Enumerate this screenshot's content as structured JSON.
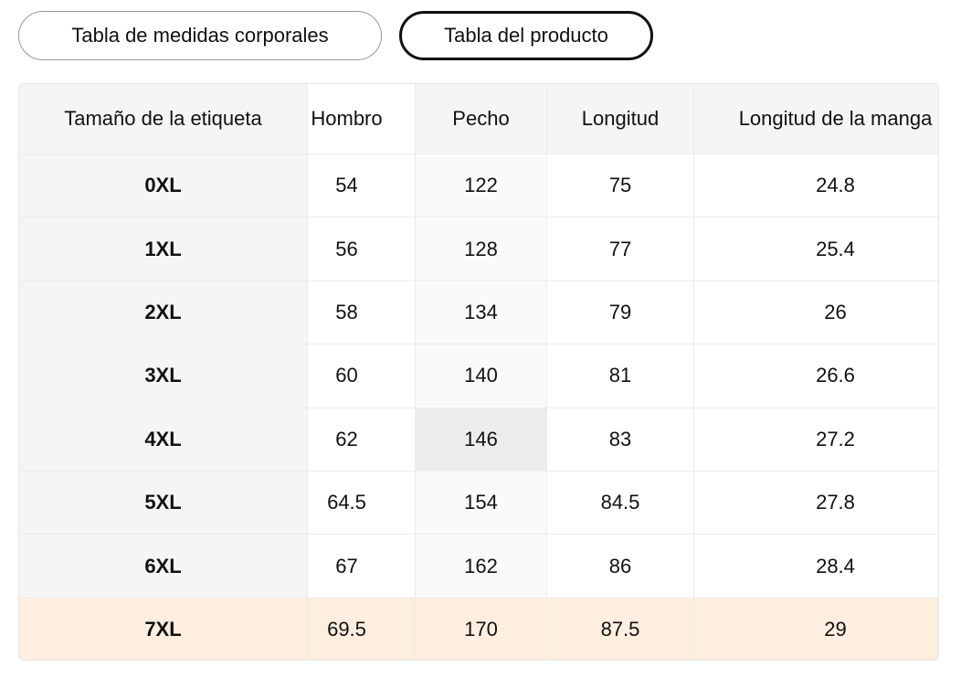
{
  "tabs": [
    "Tabla de medidas corporales",
    "Tabla del producto"
  ],
  "table": {
    "headers": [
      "Tamaño de la etiqueta",
      "Hombro",
      "Pecho",
      "Longitud",
      "Longitud de la manga"
    ],
    "rows": [
      [
        "0XL",
        54,
        122,
        75,
        24.8
      ],
      [
        "1XL",
        56,
        128,
        77,
        25.4
      ],
      [
        "2XL",
        58,
        134,
        79,
        26
      ],
      [
        "3XL",
        60,
        140,
        81,
        26.6
      ],
      [
        "4XL",
        62,
        146,
        83,
        27.2
      ],
      [
        "5XL",
        64.5,
        154,
        84.5,
        27.8
      ],
      [
        "6XL",
        67,
        162,
        86,
        28.4
      ],
      [
        "7XL",
        69.5,
        170,
        87.5,
        29
      ]
    ]
  }
}
